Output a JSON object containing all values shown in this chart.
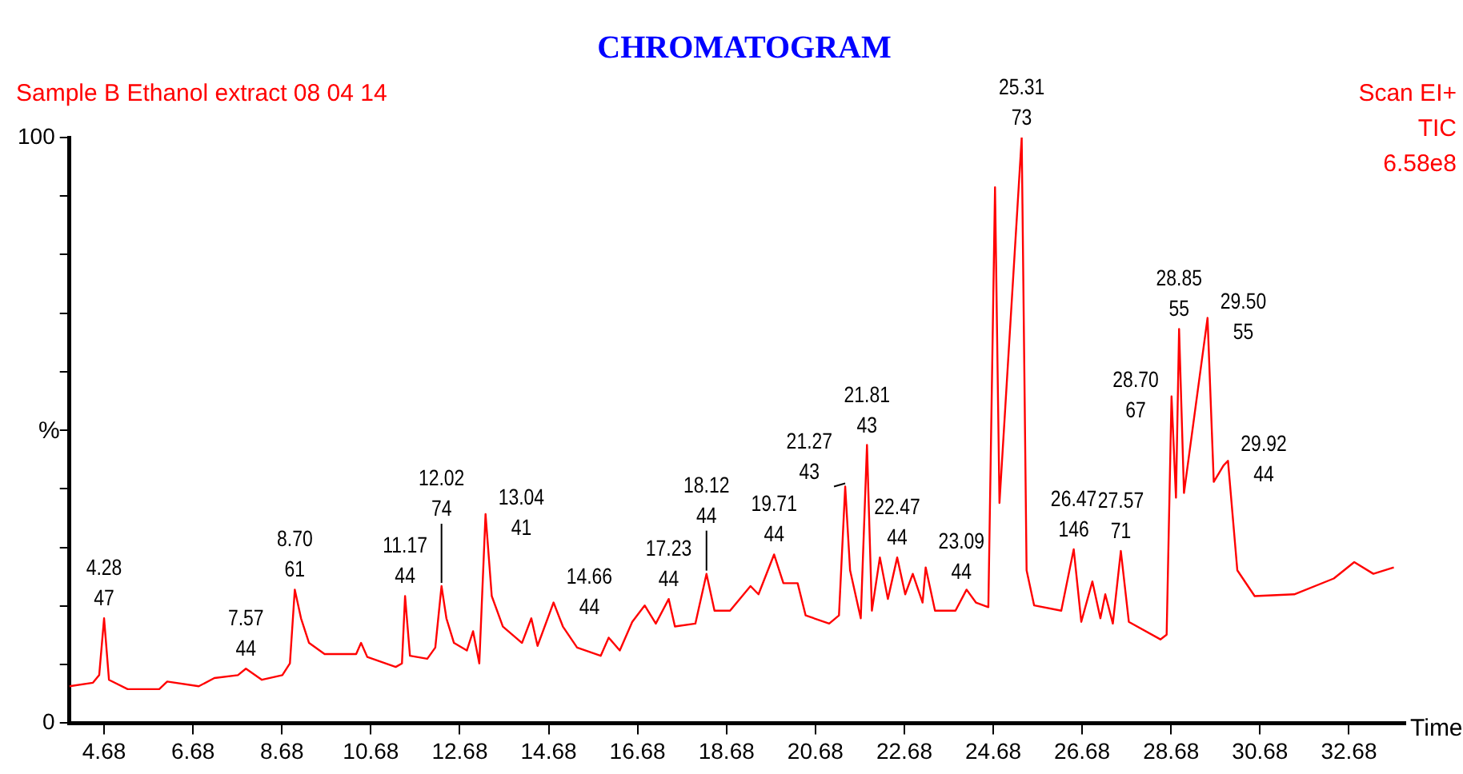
{
  "chart_data": {
    "type": "line",
    "title": "CHROMATOGRAM",
    "subtitle": "Sample B Ethanol extract 08 04 14",
    "xlabel": "Time",
    "ylabel": "%",
    "x": [
      3.9,
      4.43,
      4.57,
      4.68,
      4.79,
      5.21,
      5.92,
      6.1,
      6.81,
      7.16,
      7.69,
      7.87,
      8.23,
      8.69,
      8.86,
      8.97,
      9.11,
      9.29,
      9.64,
      10.35,
      10.46,
      10.6,
      11.24,
      11.38,
      11.45,
      11.56,
      11.95,
      12.13,
      12.27,
      12.38,
      12.55,
      12.84,
      12.98,
      13.12,
      13.26,
      13.4,
      13.65,
      14.08,
      14.29,
      14.43,
      14.79,
      15.0,
      15.32,
      15.85,
      16.03,
      16.28,
      16.56,
      16.84,
      17.09,
      17.38,
      17.52,
      17.98,
      18.23,
      18.41,
      18.76,
      19.22,
      19.4,
      19.75,
      19.96,
      20.28,
      20.46,
      20.99,
      21.21,
      21.35,
      21.46,
      21.7,
      21.84,
      21.95,
      22.13,
      22.31,
      22.52,
      22.7,
      22.87,
      23.09,
      23.16,
      23.37,
      23.83,
      24.08,
      24.29,
      24.57,
      24.72,
      24.82,
      25.32,
      25.43,
      25.6,
      26.21,
      26.49,
      26.66,
      26.91,
      27.09,
      27.2,
      27.37,
      27.55,
      27.73,
      28.44,
      28.58,
      28.69,
      28.79,
      28.86,
      28.97,
      29.5,
      29.64,
      29.86,
      29.96,
      30.17,
      30.56,
      31.45,
      32.34,
      32.8,
      33.23,
      33.69
    ],
    "series": [
      {
        "color": "#ff0000",
        "values": [
          6.3,
          6.9,
          8.2,
          17.9,
          7.4,
          5.8,
          5.8,
          7.1,
          6.3,
          7.7,
          8.2,
          9.3,
          7.4,
          8.2,
          10.2,
          22.8,
          17.9,
          13.7,
          11.8,
          11.8,
          13.7,
          11.3,
          9.6,
          10.2,
          21.7,
          11.5,
          11.0,
          12.9,
          23.4,
          17.9,
          13.7,
          12.4,
          15.7,
          10.2,
          35.7,
          21.7,
          16.5,
          13.7,
          17.9,
          13.2,
          20.6,
          16.5,
          12.9,
          11.5,
          14.6,
          12.4,
          17.3,
          20.1,
          17.0,
          21.2,
          16.5,
          17.0,
          25.5,
          19.2,
          19.2,
          23.4,
          22.0,
          28.8,
          23.9,
          23.9,
          18.4,
          17.0,
          18.4,
          40.4,
          26.1,
          17.9,
          47.5,
          19.2,
          28.3,
          21.2,
          28.3,
          22.0,
          25.5,
          20.6,
          26.6,
          19.2,
          19.2,
          22.8,
          20.6,
          19.8,
          91.5,
          37.6,
          100,
          26.1,
          20.1,
          19.2,
          29.7,
          17.3,
          24.2,
          17.9,
          22.0,
          17.0,
          29.4,
          17.3,
          14.3,
          15.1,
          55.8,
          38.5,
          67.3,
          39.3,
          69.2,
          41.2,
          44.0,
          44.8,
          26.1,
          21.7,
          22.0,
          24.7,
          27.5,
          25.5,
          26.6
        ]
      }
    ],
    "xlim": [
      3.9,
      33.95
    ],
    "ylim": [
      0,
      100
    ],
    "xticks": [
      4.68,
      6.68,
      8.68,
      10.68,
      12.68,
      14.68,
      16.68,
      18.68,
      20.68,
      22.68,
      24.68,
      26.68,
      28.68,
      30.68,
      32.68
    ],
    "yticks": [
      0,
      {
        "value": 10,
        "label": null
      },
      {
        "value": 20,
        "label": null
      },
      {
        "value": 30,
        "label": null
      },
      {
        "value": 40,
        "label": null
      },
      {
        "value": 50,
        "label": null
      },
      {
        "value": 60,
        "label": null
      },
      {
        "value": 70,
        "label": null
      },
      {
        "value": 80,
        "label": null
      },
      {
        "value": 90,
        "label": null
      },
      100
    ],
    "grid": false,
    "legend": false,
    "marker": "none",
    "line_style": "solid",
    "annotations": [
      {
        "text": "4.28\n47",
        "x": 4.68,
        "y": 17.9
      },
      {
        "text": "7.57\n44",
        "x": 7.87,
        "y": 9.3
      },
      {
        "text": "8.70\n61",
        "x": 8.97,
        "y": 22.8
      },
      {
        "text": "11.17\n44",
        "x": 11.45,
        "y": 21.7
      },
      {
        "text": "12.02\n74",
        "x": 12.27,
        "y": 23.4
      },
      {
        "text": "13.04\n41",
        "x": 13.26,
        "y": 35.7
      },
      {
        "text": "14.66\n44",
        "x": 14.79,
        "y": 20.6
      },
      {
        "text": "17.23\n44",
        "x": 17.38,
        "y": 21.2
      },
      {
        "text": "18.12\n44",
        "x": 18.23,
        "y": 25.5
      },
      {
        "text": "19.71\n44",
        "x": 19.75,
        "y": 28.8
      },
      {
        "text": "21.27\n43",
        "x": 21.35,
        "y": 40.4
      },
      {
        "text": "21.81\n43",
        "x": 21.84,
        "y": 47.5
      },
      {
        "text": "22.47\n44",
        "x": 22.52,
        "y": 28.3
      },
      {
        "text": "23.09\n44",
        "x": 23.16,
        "y": 26.6
      },
      {
        "text": "25.31\n73",
        "x": 25.32,
        "y": 100
      },
      {
        "text": "26.47\n146",
        "x": 26.49,
        "y": 29.7
      },
      {
        "text": "27.57\n71",
        "x": 27.55,
        "y": 29.4
      },
      {
        "text": "28.70\n67",
        "x": 28.69,
        "y": 55.8
      },
      {
        "text": "28.85\n55",
        "x": 28.86,
        "y": 67.3
      },
      {
        "text": "29.50\n55",
        "x": 29.5,
        "y": 69.2
      },
      {
        "text": "29.92\n44",
        "x": 29.96,
        "y": 44.8
      },
      "Scan EI+",
      "TIC",
      "6.58e8"
    ]
  }
}
